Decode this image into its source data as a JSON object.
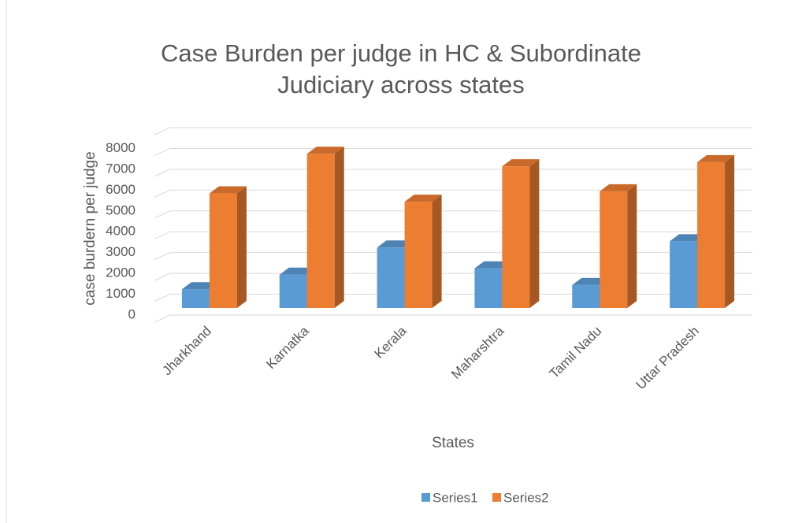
{
  "chart_data": {
    "type": "bar3d",
    "title": "Case Burden per judge in HC & Subordinate Judiciary across states",
    "x_label": "States",
    "y_label": "case burdern per judge",
    "categories": [
      "Jharkhand",
      "Karnatka",
      "Kerala",
      "Maharshtra",
      "Tamil Nadu",
      "Uttar Pradesh"
    ],
    "series": [
      {
        "name": "Series1",
        "color": "#5b9bd5",
        "values": [
          900,
          1600,
          2900,
          1900,
          1100,
          3200
        ]
      },
      {
        "name": "Series2",
        "color": "#ed7d31",
        "values": [
          5500,
          7400,
          5100,
          6800,
          5600,
          7000
        ]
      }
    ],
    "ylim": [
      0,
      9000
    ],
    "yticks": [
      0,
      1000,
      2000,
      3000,
      4000,
      5000,
      6000,
      7000,
      8000
    ],
    "grid": true,
    "legend": "bottom"
  }
}
